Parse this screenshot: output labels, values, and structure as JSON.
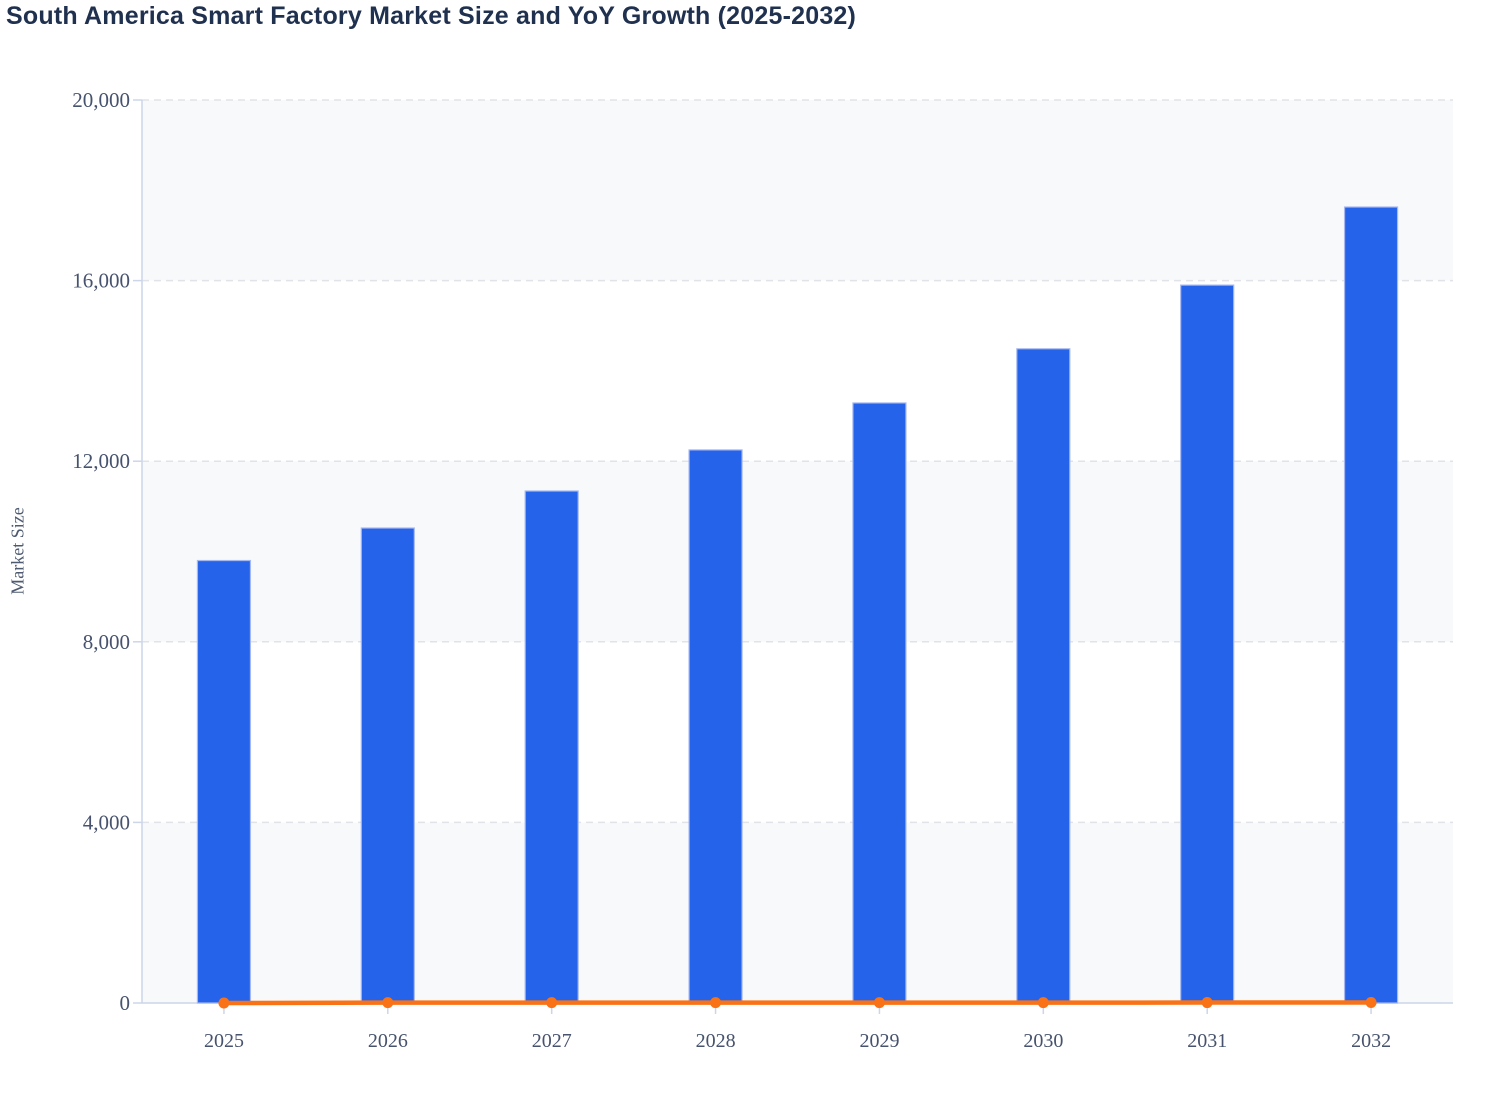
{
  "title": "South America Smart Factory Market Size and YoY Growth (2025-2032)",
  "chart_data": {
    "type": "bar",
    "title": "South America Smart Factory Market Size and YoY Growth (2025-2032)",
    "categories": [
      "2025",
      "2026",
      "2027",
      "2028",
      "2029",
      "2030",
      "2031",
      "2032"
    ],
    "series": [
      {
        "name": "Market Size",
        "type": "bar",
        "color": "#2563eb",
        "values": [
          9800,
          10520,
          11340,
          12250,
          13290,
          14490,
          15900,
          17630
        ]
      },
      {
        "name": "YoY Growth",
        "type": "line",
        "color": "#f97316",
        "values": [
          0,
          7.3,
          7.8,
          8.0,
          8.5,
          9.0,
          9.7,
          10.9
        ]
      }
    ],
    "xlabel": "",
    "ylabel": "Market Size",
    "ylim": [
      0,
      20000
    ],
    "yticks": [
      0,
      4000,
      8000,
      12000,
      16000,
      20000
    ],
    "ytick_labels": [
      "0",
      "4,000",
      "8,000",
      "12,000",
      "16,000",
      "20,000"
    ],
    "grid": "horizontal-dashed",
    "split_area": "alternating-horizontal-bands",
    "legend": "none"
  },
  "colors": {
    "title": "#20314f",
    "bar_fill": "#2563eb",
    "bar_border": "#a6b8f0",
    "line": "#f97316",
    "axis_line": "#ccd5ea",
    "gridline": "#e1e3e8",
    "band": "#f8f9fb",
    "tick_label": "#47536e",
    "axis_title": "#4d5a70"
  }
}
